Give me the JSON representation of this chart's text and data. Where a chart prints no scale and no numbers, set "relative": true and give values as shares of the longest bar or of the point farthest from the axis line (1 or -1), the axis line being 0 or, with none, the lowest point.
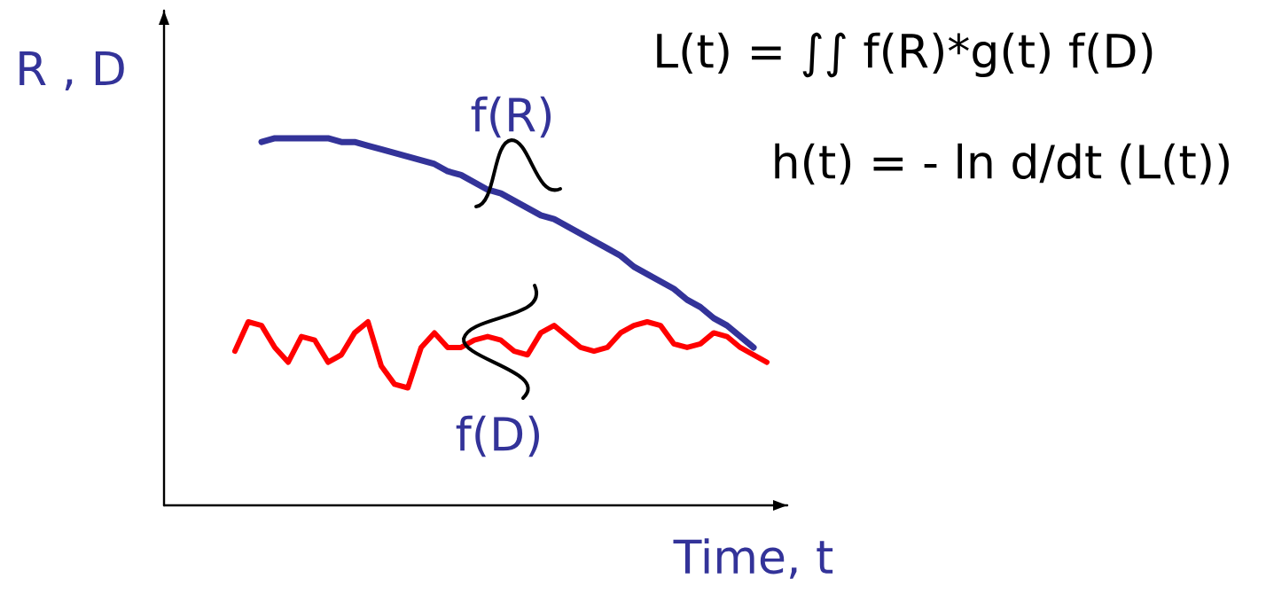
{
  "chart_data": {
    "type": "line",
    "relative": true,
    "xlabel": "Time, t",
    "ylabel": "R , D",
    "annotations": [
      "L(t) = ∫∫ f(R)*g(t) f(D)",
      "h(t) = - ln d/dt (L(t))"
    ],
    "categories": [
      null,
      null,
      null,
      null,
      null,
      null,
      null,
      null,
      null,
      null,
      null,
      null,
      null,
      null,
      null,
      null,
      null,
      null,
      null,
      null,
      null,
      null,
      null,
      null,
      null,
      null,
      null,
      null,
      null,
      null,
      null,
      null,
      null,
      null,
      null,
      null,
      null,
      null,
      null,
      null,
      null
    ],
    "series": [
      {
        "name": "f(R)",
        "color": "#333399",
        "values": [
          null,
          null,
          0.99,
          1.0,
          1.0,
          1.0,
          1.0,
          1.0,
          0.99,
          0.99,
          0.98,
          0.97,
          0.96,
          0.95,
          0.94,
          0.93,
          0.91,
          0.9,
          0.88,
          0.86,
          0.85,
          0.83,
          0.81,
          0.79,
          0.78,
          0.76,
          0.74,
          0.72,
          0.7,
          0.68,
          0.65,
          0.63,
          0.61,
          0.59,
          0.56,
          0.54,
          0.51,
          0.49,
          0.46,
          0.43,
          null
        ]
      },
      {
        "name": "f(D)",
        "color": "#ff0000",
        "values": [
          0.42,
          0.5,
          0.49,
          0.43,
          0.39,
          0.46,
          0.45,
          0.39,
          0.41,
          0.47,
          0.5,
          0.38,
          0.33,
          0.32,
          0.43,
          0.47,
          0.43,
          0.43,
          0.45,
          0.46,
          0.45,
          0.42,
          0.41,
          0.47,
          0.49,
          0.46,
          0.43,
          0.42,
          0.43,
          0.47,
          0.49,
          0.5,
          0.49,
          0.44,
          0.43,
          0.44,
          0.47,
          0.46,
          0.43,
          0.41,
          0.39
        ]
      }
    ]
  }
}
